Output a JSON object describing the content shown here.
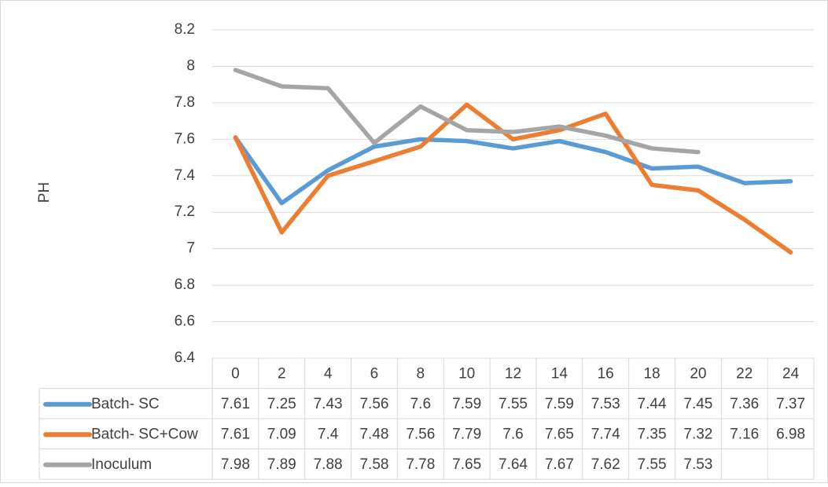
{
  "chart_data": {
    "type": "line",
    "y_label": "PH",
    "categories": [
      "0",
      "2",
      "4",
      "6",
      "8",
      "10",
      "12",
      "14",
      "16",
      "18",
      "20",
      "22",
      "24"
    ],
    "series": [
      {
        "name": "Batch- SC",
        "color": "#5b9bd5",
        "values": [
          7.61,
          7.25,
          7.43,
          7.56,
          7.6,
          7.59,
          7.55,
          7.59,
          7.53,
          7.44,
          7.45,
          7.36,
          7.37
        ]
      },
      {
        "name": "Batch- SC+Cow",
        "color": "#ed7d31",
        "values": [
          7.61,
          7.09,
          7.4,
          7.48,
          7.56,
          7.79,
          7.6,
          7.65,
          7.74,
          7.35,
          7.32,
          7.16,
          6.98
        ]
      },
      {
        "name": "Inoculum",
        "color": "#a5a5a5",
        "values": [
          7.98,
          7.89,
          7.88,
          7.58,
          7.78,
          7.65,
          7.64,
          7.67,
          7.62,
          7.55,
          7.53,
          null,
          null
        ]
      }
    ],
    "ylim": [
      6.4,
      8.2
    ],
    "yticks": [
      6.4,
      6.6,
      6.8,
      7,
      7.2,
      7.4,
      7.6,
      7.8,
      8,
      8.2
    ],
    "grid": true,
    "data_table": true
  }
}
